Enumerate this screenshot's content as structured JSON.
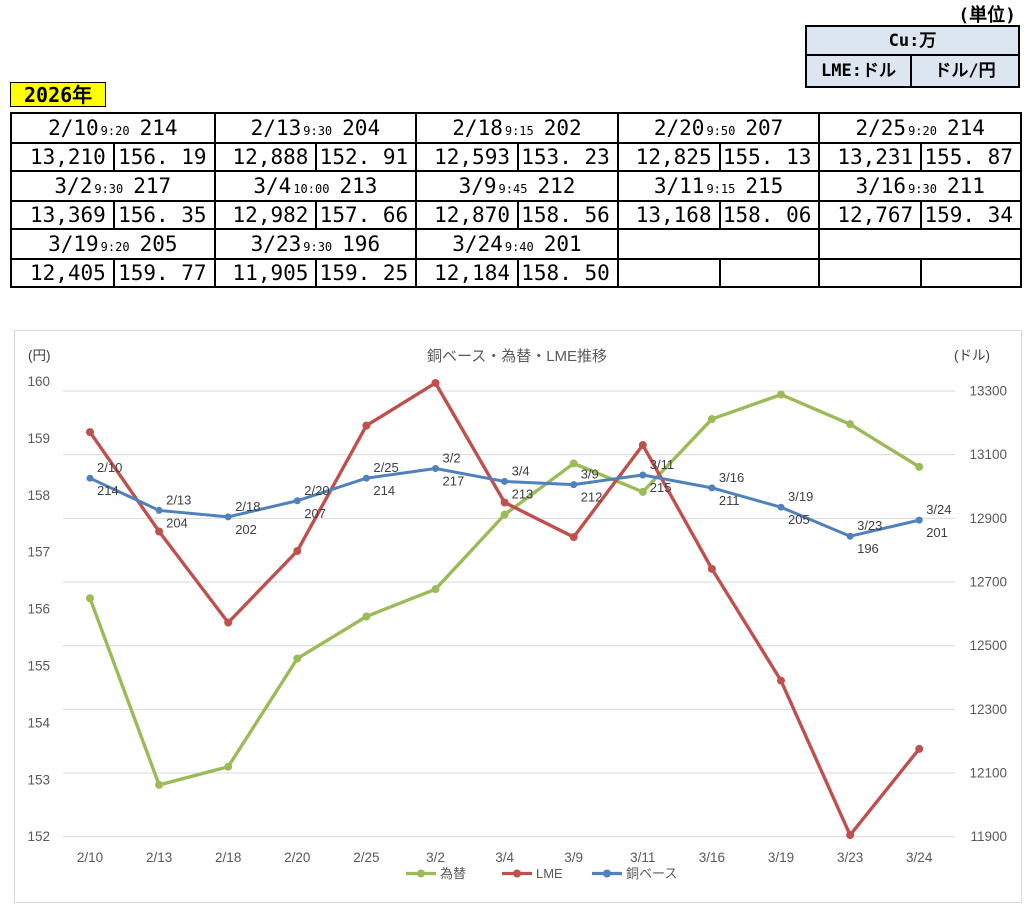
{
  "unit_note": "(単位)",
  "unit_table": {
    "row1": "Cu:万",
    "row2_left": "LME:ドル",
    "row2_right": "ドル/円"
  },
  "year_label": "2026年",
  "table_layout": {
    "groups_per_band": 5,
    "bands": 3
  },
  "price_entries": [
    {
      "date": "2/10",
      "time": "9:20",
      "cu": "214",
      "lme": "13,210",
      "rate": "156. 19"
    },
    {
      "date": "2/13",
      "time": "9:30",
      "cu": "204",
      "lme": "12,888",
      "rate": "152. 91"
    },
    {
      "date": "2/18",
      "time": "9:15",
      "cu": "202",
      "lme": "12,593",
      "rate": "153. 23"
    },
    {
      "date": "2/20",
      "time": "9:50",
      "cu": "207",
      "lme": "12,825",
      "rate": "155. 13"
    },
    {
      "date": "2/25",
      "time": "9:20",
      "cu": "214",
      "lme": "13,231",
      "rate": "155. 87"
    },
    {
      "date": "3/2",
      "time": "9:30",
      "cu": "217",
      "lme": "13,369",
      "rate": "156. 35"
    },
    {
      "date": "3/4",
      "time": "10:00",
      "cu": "213",
      "lme": "12,982",
      "rate": "157. 66"
    },
    {
      "date": "3/9",
      "time": "9:45",
      "cu": "212",
      "lme": "12,870",
      "rate": "158. 56"
    },
    {
      "date": "3/11",
      "time": "9:15",
      "cu": "215",
      "lme": "13,168",
      "rate": "158. 06"
    },
    {
      "date": "3/16",
      "time": "9:30",
      "cu": "211",
      "lme": "12,767",
      "rate": "159. 34"
    },
    {
      "date": "3/19",
      "time": "9:20",
      "cu": "205",
      "lme": "12,405",
      "rate": "159. 77"
    },
    {
      "date": "3/23",
      "time": "9:30",
      "cu": "196",
      "lme": "11,905",
      "rate": "159. 25"
    },
    {
      "date": "3/24",
      "time": "9:40",
      "cu": "201",
      "lme": "12,184",
      "rate": "158. 50"
    }
  ],
  "chart_data": {
    "type": "line",
    "title": "銅ベース・為替・LME推移",
    "categories": [
      "2/10",
      "2/13",
      "2/18",
      "2/20",
      "2/25",
      "3/2",
      "3/4",
      "3/9",
      "3/11",
      "3/16",
      "3/19",
      "3/23",
      "3/24"
    ],
    "left_axis": {
      "label": "(円)",
      "ticks": [
        160,
        159,
        158,
        157,
        156,
        155,
        154,
        153,
        152
      ],
      "range": [
        152,
        160
      ]
    },
    "right_axis": {
      "label": "(ドル)",
      "ticks": [
        13300,
        13100,
        12900,
        12700,
        12500,
        12300,
        12100,
        11900
      ],
      "range": [
        11900,
        13400
      ]
    },
    "series": [
      {
        "name": "為替",
        "axis": "yen",
        "color": "#9BBB59",
        "values": [
          156.19,
          152.91,
          153.23,
          155.13,
          155.87,
          156.35,
          157.66,
          158.56,
          158.06,
          159.34,
          159.77,
          159.25,
          158.5
        ]
      },
      {
        "name": "LME",
        "axis": "usd",
        "color": "#C0504D",
        "values": [
          13210,
          12888,
          12593,
          12825,
          13231,
          13369,
          12982,
          12870,
          13168,
          12767,
          12405,
          11905,
          12184
        ]
      },
      {
        "name": "銅ベース",
        "axis": "cu",
        "color": "#4F81BD",
        "point_labels": true,
        "values": [
          214,
          204,
          202,
          207,
          214,
          217,
          213,
          212,
          215,
          211,
          205,
          196,
          201
        ]
      }
    ],
    "legend": [
      "為替",
      "LME",
      "銅ベース"
    ],
    "legend_position": "bottom",
    "grid": true,
    "text_color": "#595959",
    "label_color": "#404040",
    "grid_color": "#D9D9D9"
  }
}
